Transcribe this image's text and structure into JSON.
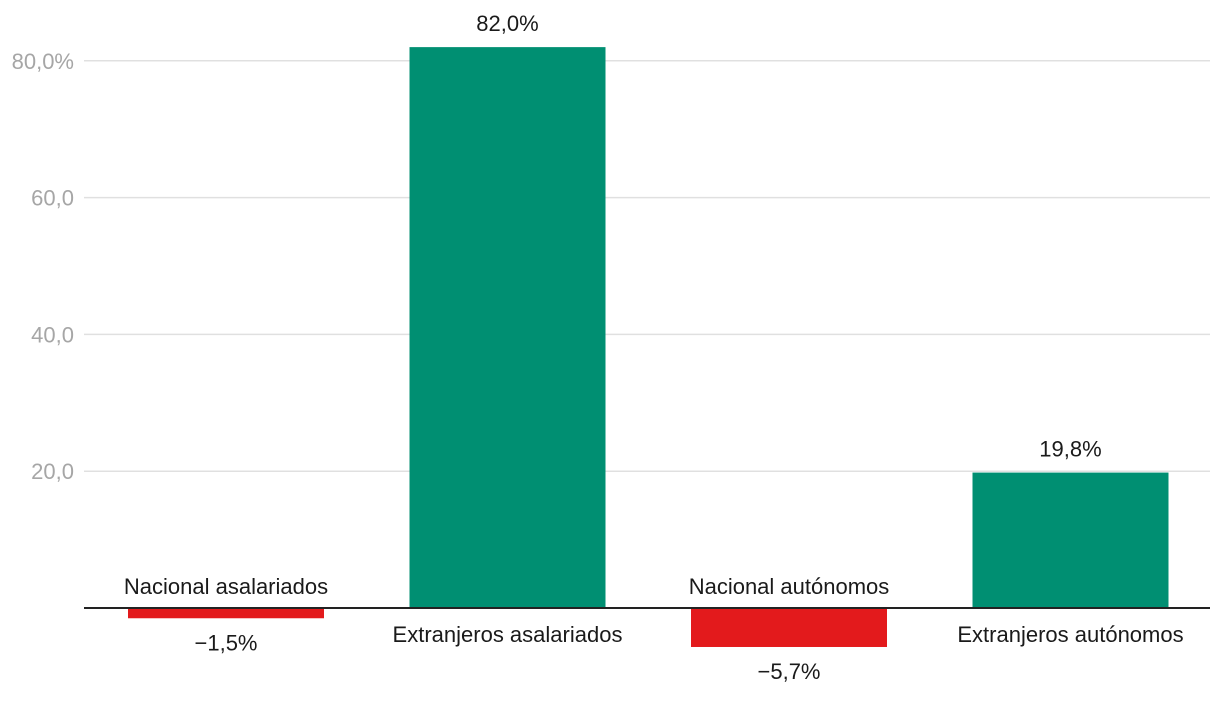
{
  "chart_data": {
    "type": "bar",
    "title": "",
    "xlabel": "",
    "ylabel": "",
    "ylim": [
      -10,
      85
    ],
    "yticks": [
      {
        "value": 20,
        "label": "20,0"
      },
      {
        "value": 40,
        "label": "40,0"
      },
      {
        "value": 60,
        "label": "60,0"
      },
      {
        "value": 80,
        "label": "80,0%"
      }
    ],
    "categories": [
      "Nacional asalariados",
      "Extranjeros asalariados",
      "Nacional autónomos",
      "Extranjeros autónomos"
    ],
    "values": [
      -1.5,
      82.0,
      -5.7,
      19.8
    ],
    "value_labels": [
      "−1,5%",
      "82,0%",
      "−5,7%",
      "19,8%"
    ],
    "colors": {
      "positive": "#008f72",
      "negative": "#e31a1c"
    }
  }
}
